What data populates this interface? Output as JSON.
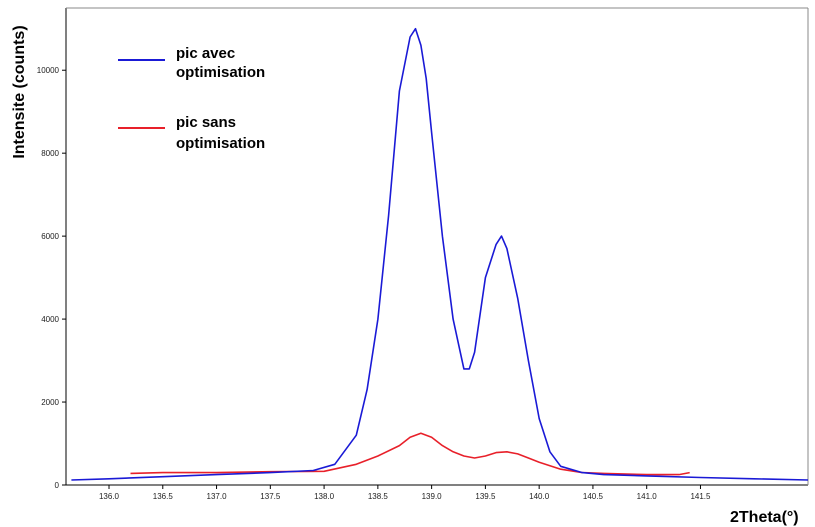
{
  "chart_data": {
    "type": "line",
    "title": "",
    "xlabel": "2Theta(°)",
    "ylabel": "Intensite (counts)",
    "xlim": [
      135.6,
      142.5
    ],
    "ylim": [
      0,
      11500
    ],
    "grid": false,
    "legend_position": "top-left",
    "x_ticks": [
      "136.0",
      "136.5",
      "137.0",
      "137.5",
      "138.0",
      "138.5",
      "139.0",
      "139.5",
      "140.0",
      "140.5",
      "141.0",
      "141.5"
    ],
    "x_tick_values": [
      136.0,
      136.5,
      137.0,
      137.5,
      138.0,
      138.5,
      139.0,
      139.5,
      140.0,
      140.5,
      141.0,
      141.5
    ],
    "y_ticks": [
      "0",
      "2000",
      "4000",
      "6000",
      "8000",
      "10000"
    ],
    "y_tick_values": [
      0,
      2000,
      4000,
      6000,
      8000,
      10000
    ],
    "series": [
      {
        "name": "pic avec optimisation",
        "color": "#1a1ad6",
        "x": [
          135.65,
          136.0,
          136.5,
          137.0,
          137.5,
          137.9,
          138.1,
          138.3,
          138.4,
          138.5,
          138.6,
          138.65,
          138.7,
          138.8,
          138.85,
          138.9,
          138.95,
          139.0,
          139.1,
          139.2,
          139.3,
          139.35,
          139.4,
          139.5,
          139.6,
          139.65,
          139.7,
          139.8,
          139.9,
          140.0,
          140.1,
          140.2,
          140.4,
          140.6,
          141.0,
          141.5,
          142.0,
          142.5
        ],
        "y": [
          120,
          150,
          200,
          250,
          300,
          350,
          500,
          1200,
          2300,
          4000,
          6500,
          8000,
          9500,
          10800,
          11000,
          10600,
          9800,
          8500,
          6000,
          4000,
          2800,
          2800,
          3200,
          5000,
          5800,
          6000,
          5700,
          4500,
          3000,
          1600,
          800,
          450,
          300,
          250,
          220,
          180,
          150,
          120
        ]
      },
      {
        "name": "pic sans optimisation",
        "color": "#e8202a",
        "x": [
          136.2,
          136.5,
          137.0,
          137.5,
          138.0,
          138.3,
          138.5,
          138.7,
          138.8,
          138.9,
          138.95,
          139.0,
          139.1,
          139.2,
          139.3,
          139.4,
          139.5,
          139.6,
          139.7,
          139.8,
          139.9,
          140.0,
          140.2,
          140.4,
          140.6,
          141.0,
          141.3,
          141.4
        ],
        "y": [
          280,
          300,
          300,
          320,
          330,
          500,
          700,
          950,
          1150,
          1250,
          1200,
          1150,
          950,
          800,
          700,
          650,
          700,
          780,
          800,
          750,
          650,
          550,
          380,
          300,
          280,
          250,
          250,
          300
        ]
      }
    ]
  }
}
